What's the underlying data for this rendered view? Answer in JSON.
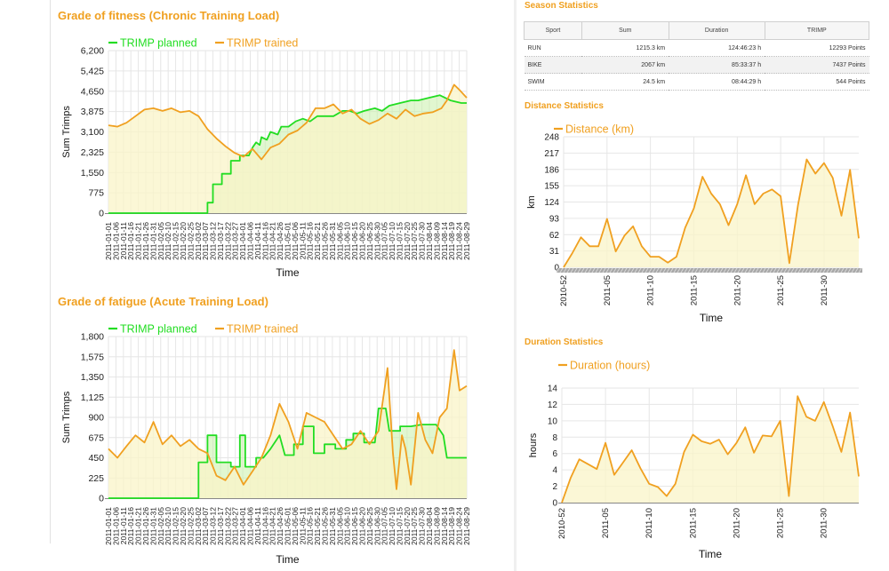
{
  "chart_data": [
    {
      "id": "fitness",
      "type": "line",
      "title": "Grade of fitness (Chronic Training Load)",
      "xlabel": "Time",
      "ylabel": "Sum Trimps",
      "ylim": [
        0,
        6200
      ],
      "yticks": [
        "0",
        "775",
        "1,550",
        "2,325",
        "3,100",
        "3,875",
        "4,650",
        "5,425",
        "6,200"
      ],
      "xticks": [
        "2011-01-01",
        "2011-01-06",
        "2011-01-11",
        "2011-01-16",
        "2011-01-21",
        "2011-01-26",
        "2011-01-31",
        "2011-02-05",
        "2011-02-10",
        "2011-02-15",
        "2011-02-20",
        "2011-02-25",
        "2011-03-02",
        "2011-03-07",
        "2011-03-12",
        "2011-03-17",
        "2011-03-22",
        "2011-03-27",
        "2011-04-01",
        "2011-04-06",
        "2011-04-11",
        "2011-04-16",
        "2011-04-21",
        "2011-04-26",
        "2011-05-01",
        "2011-05-06",
        "2011-05-11",
        "2011-05-16",
        "2011-05-21",
        "2011-05-26",
        "2011-05-31",
        "2011-06-05",
        "2011-06-10",
        "2011-06-15",
        "2011-06-20",
        "2011-06-25",
        "2011-06-30",
        "2011-07-05",
        "2011-07-10",
        "2011-07-15",
        "2011-07-20",
        "2011-07-25",
        "2011-07-30",
        "2011-08-04",
        "2011-08-09",
        "2011-08-14",
        "2011-08-19",
        "2011-08-24",
        "2011-08-29"
      ],
      "legend_position": "top-left",
      "series": [
        {
          "name": "TRIMP planned",
          "color": "#22dd22",
          "values": [
            [
              0,
              0
            ],
            [
              10,
              0
            ],
            [
              20,
              0
            ],
            [
              30,
              0
            ],
            [
              40,
              0
            ],
            [
              50,
              0
            ],
            [
              55,
              0
            ],
            [
              55,
              400
            ],
            [
              58,
              400
            ],
            [
              58,
              1100
            ],
            [
              63,
              1100
            ],
            [
              63,
              1500
            ],
            [
              68,
              1500
            ],
            [
              68,
              2000
            ],
            [
              73,
              2000
            ],
            [
              73,
              2200
            ],
            [
              78,
              2200
            ],
            [
              80,
              2500
            ],
            [
              82,
              2700
            ],
            [
              84,
              2600
            ],
            [
              85,
              2900
            ],
            [
              88,
              2800
            ],
            [
              90,
              3100
            ],
            [
              94,
              3000
            ],
            [
              96,
              3300
            ],
            [
              100,
              3300
            ],
            [
              104,
              3500
            ],
            [
              108,
              3600
            ],
            [
              112,
              3500
            ],
            [
              116,
              3700
            ],
            [
              120,
              3700
            ],
            [
              125,
              3700
            ],
            [
              130,
              3900
            ],
            [
              134,
              3900
            ],
            [
              138,
              3800
            ],
            [
              142,
              3900
            ],
            [
              148,
              4000
            ],
            [
              152,
              3900
            ],
            [
              156,
              4100
            ],
            [
              162,
              4200
            ],
            [
              168,
              4300
            ],
            [
              172,
              4300
            ],
            [
              178,
              4400
            ],
            [
              184,
              4500
            ],
            [
              190,
              4300
            ],
            [
              196,
              4200
            ],
            [
              199,
              4200
            ]
          ]
        },
        {
          "name": "TRIMP trained",
          "color": "#f0a020",
          "values": [
            [
              0,
              3350
            ],
            [
              5,
              3300
            ],
            [
              10,
              3450
            ],
            [
              15,
              3700
            ],
            [
              20,
              3950
            ],
            [
              25,
              4000
            ],
            [
              30,
              3900
            ],
            [
              35,
              4000
            ],
            [
              40,
              3850
            ],
            [
              45,
              3900
            ],
            [
              50,
              3700
            ],
            [
              55,
              3200
            ],
            [
              60,
              2850
            ],
            [
              65,
              2550
            ],
            [
              70,
              2300
            ],
            [
              75,
              2150
            ],
            [
              80,
              2450
            ],
            [
              85,
              2050
            ],
            [
              90,
              2500
            ],
            [
              95,
              2650
            ],
            [
              100,
              3000
            ],
            [
              105,
              3150
            ],
            [
              110,
              3450
            ],
            [
              115,
              4000
            ],
            [
              120,
              4000
            ],
            [
              125,
              4150
            ],
            [
              130,
              3800
            ],
            [
              135,
              3950
            ],
            [
              140,
              3600
            ],
            [
              145,
              3400
            ],
            [
              150,
              3550
            ],
            [
              155,
              3800
            ],
            [
              160,
              3600
            ],
            [
              165,
              3950
            ],
            [
              170,
              3700
            ],
            [
              175,
              3800
            ],
            [
              180,
              3850
            ],
            [
              185,
              4000
            ],
            [
              188,
              4300
            ],
            [
              192,
              4900
            ],
            [
              195,
              4700
            ],
            [
              199,
              4400
            ]
          ]
        }
      ]
    },
    {
      "id": "fatigue",
      "type": "line",
      "title": "Grade of fatigue (Acute Training Load)",
      "xlabel": "Time",
      "ylabel": "Sum Trimps",
      "ylim": [
        0,
        1800
      ],
      "yticks": [
        "0",
        "225",
        "450",
        "675",
        "900",
        "1,125",
        "1,350",
        "1,575",
        "1,800"
      ],
      "xticks": [
        "2011-01-01",
        "2011-01-06",
        "2011-01-11",
        "2011-01-16",
        "2011-01-21",
        "2011-01-26",
        "2011-01-31",
        "2011-02-05",
        "2011-02-10",
        "2011-02-15",
        "2011-02-20",
        "2011-02-25",
        "2011-03-02",
        "2011-03-07",
        "2011-03-12",
        "2011-03-17",
        "2011-03-22",
        "2011-03-27",
        "2011-04-01",
        "2011-04-06",
        "2011-04-11",
        "2011-04-16",
        "2011-04-21",
        "2011-04-26",
        "2011-05-01",
        "2011-05-06",
        "2011-05-11",
        "2011-05-16",
        "2011-05-21",
        "2011-05-26",
        "2011-05-31",
        "2011-06-05",
        "2011-06-10",
        "2011-06-15",
        "2011-06-20",
        "2011-06-25",
        "2011-06-30",
        "2011-07-05",
        "2011-07-10",
        "2011-07-15",
        "2011-07-20",
        "2011-07-25",
        "2011-07-30",
        "2011-08-04",
        "2011-08-09",
        "2011-08-14",
        "2011-08-19",
        "2011-08-24",
        "2011-08-29"
      ],
      "legend_position": "top-left",
      "series": [
        {
          "name": "TRIMP planned",
          "color": "#22dd22",
          "values": [
            [
              0,
              0
            ],
            [
              20,
              0
            ],
            [
              40,
              0
            ],
            [
              50,
              0
            ],
            [
              50,
              400
            ],
            [
              55,
              400
            ],
            [
              55,
              700
            ],
            [
              60,
              700
            ],
            [
              60,
              400
            ],
            [
              68,
              400
            ],
            [
              68,
              350
            ],
            [
              73,
              350
            ],
            [
              73,
              700
            ],
            [
              76,
              700
            ],
            [
              76,
              350
            ],
            [
              82,
              350
            ],
            [
              82,
              450
            ],
            [
              86,
              450
            ],
            [
              90,
              550
            ],
            [
              95,
              700
            ],
            [
              98,
              480
            ],
            [
              103,
              480
            ],
            [
              103,
              600
            ],
            [
              108,
              600
            ],
            [
              108,
              800
            ],
            [
              114,
              800
            ],
            [
              114,
              500
            ],
            [
              120,
              500
            ],
            [
              120,
              600
            ],
            [
              126,
              600
            ],
            [
              126,
              550
            ],
            [
              132,
              550
            ],
            [
              132,
              650
            ],
            [
              136,
              650
            ],
            [
              136,
              720
            ],
            [
              142,
              720
            ],
            [
              142,
              620
            ],
            [
              148,
              620
            ],
            [
              150,
              1000
            ],
            [
              154,
              1000
            ],
            [
              156,
              750
            ],
            [
              162,
              750
            ],
            [
              162,
              800
            ],
            [
              168,
              800
            ],
            [
              174,
              820
            ],
            [
              182,
              820
            ],
            [
              186,
              700
            ],
            [
              188,
              450
            ],
            [
              194,
              450
            ],
            [
              199,
              450
            ]
          ]
        },
        {
          "name": "TRIMP trained",
          "color": "#f0a020",
          "values": [
            [
              0,
              550
            ],
            [
              5,
              450
            ],
            [
              10,
              580
            ],
            [
              15,
              700
            ],
            [
              20,
              620
            ],
            [
              25,
              850
            ],
            [
              30,
              600
            ],
            [
              35,
              700
            ],
            [
              40,
              580
            ],
            [
              45,
              650
            ],
            [
              50,
              550
            ],
            [
              55,
              500
            ],
            [
              60,
              250
            ],
            [
              65,
              200
            ],
            [
              70,
              350
            ],
            [
              75,
              150
            ],
            [
              80,
              300
            ],
            [
              85,
              450
            ],
            [
              90,
              700
            ],
            [
              95,
              1050
            ],
            [
              100,
              850
            ],
            [
              105,
              550
            ],
            [
              110,
              950
            ],
            [
              115,
              900
            ],
            [
              120,
              850
            ],
            [
              125,
              700
            ],
            [
              130,
              550
            ],
            [
              135,
              600
            ],
            [
              140,
              750
            ],
            [
              145,
              600
            ],
            [
              150,
              750
            ],
            [
              155,
              1450
            ],
            [
              158,
              500
            ],
            [
              160,
              100
            ],
            [
              163,
              700
            ],
            [
              165,
              550
            ],
            [
              168,
              150
            ],
            [
              172,
              950
            ],
            [
              176,
              650
            ],
            [
              180,
              500
            ],
            [
              184,
              900
            ],
            [
              188,
              1000
            ],
            [
              192,
              1650
            ],
            [
              195,
              1200
            ],
            [
              199,
              1250
            ]
          ]
        }
      ]
    },
    {
      "id": "distance",
      "type": "line",
      "title": "Distance Statistics",
      "xlabel": "Time",
      "ylabel": "km",
      "ylim": [
        0,
        248
      ],
      "yticks": [
        "0",
        "31",
        "62",
        "93",
        "124",
        "155",
        "186",
        "217",
        "248"
      ],
      "xticks": [
        "2010-52",
        "2011-05",
        "2011-10",
        "2011-15",
        "2011-20",
        "2011-25",
        "2011-30"
      ],
      "legend_position": "top-left",
      "series": [
        {
          "name": "Distance (km)",
          "color": "#f0a020",
          "values": [
            0,
            27,
            57,
            40,
            40,
            92,
            30,
            60,
            78,
            40,
            20,
            20,
            9,
            20,
            75,
            112,
            172,
            140,
            120,
            80,
            120,
            175,
            120,
            140,
            148,
            135,
            8,
            118,
            205,
            178,
            198,
            170,
            98,
            185,
            55
          ]
        }
      ]
    },
    {
      "id": "duration",
      "type": "line",
      "title": "Duration Statistics",
      "xlabel": "Time",
      "ylabel": "hours",
      "ylim": [
        0,
        14
      ],
      "yticks": [
        "0",
        "2",
        "4",
        "6",
        "8",
        "10",
        "12",
        "14"
      ],
      "xticks": [
        "2010-52",
        "2011-05",
        "2011-10",
        "2011-15",
        "2011-20",
        "2011-25",
        "2011-30"
      ],
      "legend_position": "top-left",
      "series": [
        {
          "name": "Duration (hours)",
          "color": "#f0a020",
          "values": [
            0,
            3,
            5.3,
            4.7,
            4.1,
            7.3,
            3.4,
            4.9,
            6.4,
            4.2,
            2.3,
            1.9,
            0.8,
            2.3,
            6.2,
            8.3,
            7.5,
            7.2,
            7.7,
            5.9,
            7.3,
            9.2,
            6.1,
            8.2,
            8.1,
            10,
            0.8,
            13,
            10.5,
            10,
            12.3,
            9.4,
            6.2,
            11,
            3.2
          ]
        }
      ]
    }
  ],
  "season_statistics": {
    "title": "Season Statistics",
    "columns": [
      "Sport",
      "Sum",
      "Duration",
      "TRIMP"
    ],
    "rows": [
      {
        "sport": "RUN",
        "sum": "1215.3 km",
        "duration": "124:46:23 h",
        "trimp": "12293 Points"
      },
      {
        "sport": "BIKE",
        "sum": "2067 km",
        "duration": "85:33:37 h",
        "trimp": "7437 Points"
      },
      {
        "sport": "SWIM",
        "sum": "24.5 km",
        "duration": "08:44:29 h",
        "trimp": "544 Points"
      }
    ]
  }
}
